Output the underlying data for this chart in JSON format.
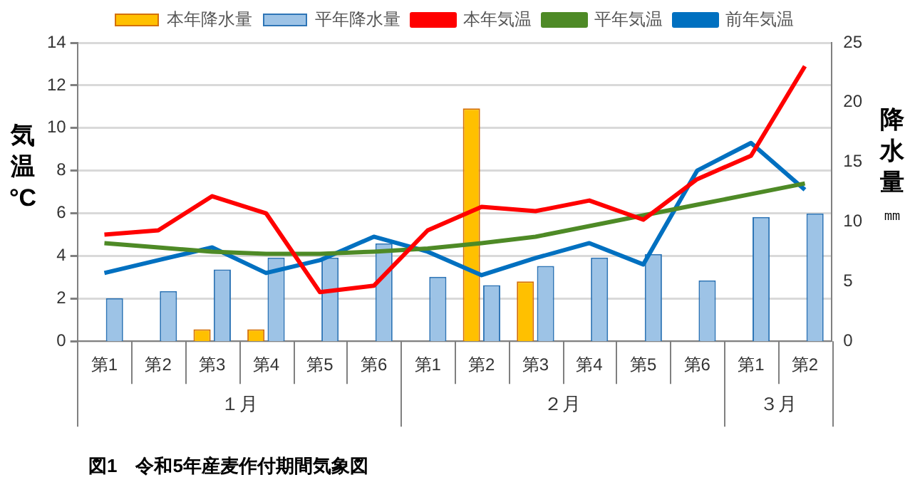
{
  "chart_data": {
    "type": "bar",
    "ylabel": "気温°C",
    "y2label": "降水量㎜",
    "categories": [
      "第1",
      "第2",
      "第3",
      "第4",
      "第5",
      "第6",
      "第1",
      "第2",
      "第3",
      "第4",
      "第5",
      "第6",
      "第1",
      "第2"
    ],
    "series": [
      {
        "name": "本年降水量",
        "axis": "y2",
        "color": "#ffc000",
        "values": [
          null,
          null,
          1,
          1,
          null,
          null,
          null,
          19.5,
          5,
          null,
          null,
          null,
          null,
          null
        ]
      },
      {
        "name": "平年降水量",
        "axis": "y2",
        "color": "#9dc3e6",
        "values": [
          3.6,
          4.2,
          6,
          7,
          7,
          8.2,
          5.4,
          4.7,
          6.3,
          7,
          7.3,
          5.1,
          10.4,
          10.7
        ]
      },
      {
        "name": "本年気温",
        "type": "line",
        "color": "#ff0000",
        "values": [
          5,
          5.2,
          6.8,
          6,
          2.3,
          2.6,
          5.2,
          6.3,
          6.1,
          6.6,
          5.7,
          7.6,
          8.7,
          12.9
        ]
      },
      {
        "name": "平年気温",
        "type": "line",
        "color": "#4e8a26",
        "values": [
          4.6,
          4.4,
          4.2,
          4.1,
          4.1,
          4.2,
          4.35,
          4.6,
          4.9,
          5.4,
          5.9,
          6.4,
          6.9,
          7.4
        ]
      },
      {
        "name": "前年気温",
        "type": "line",
        "color": "#0070c0",
        "values": [
          3.2,
          3.8,
          4.4,
          3.2,
          3.8,
          4.9,
          4.2,
          3.1,
          3.9,
          4.6,
          3.6,
          8,
          9.3,
          7.1
        ]
      }
    ],
    "ylim": [
      0,
      14
    ],
    "yticks": [
      0,
      2,
      4,
      6,
      8,
      10,
      12,
      14
    ],
    "y2lim": [
      0,
      25
    ],
    "y2ticks": [
      0,
      5,
      10,
      15,
      20,
      25
    ],
    "grid": "y",
    "legend": "top",
    "marker": "none",
    "line_style": "solid",
    "annotations": [
      "１月",
      "２月",
      "３月",
      "図1　令和5年産麦作付期間気象図"
    ]
  }
}
